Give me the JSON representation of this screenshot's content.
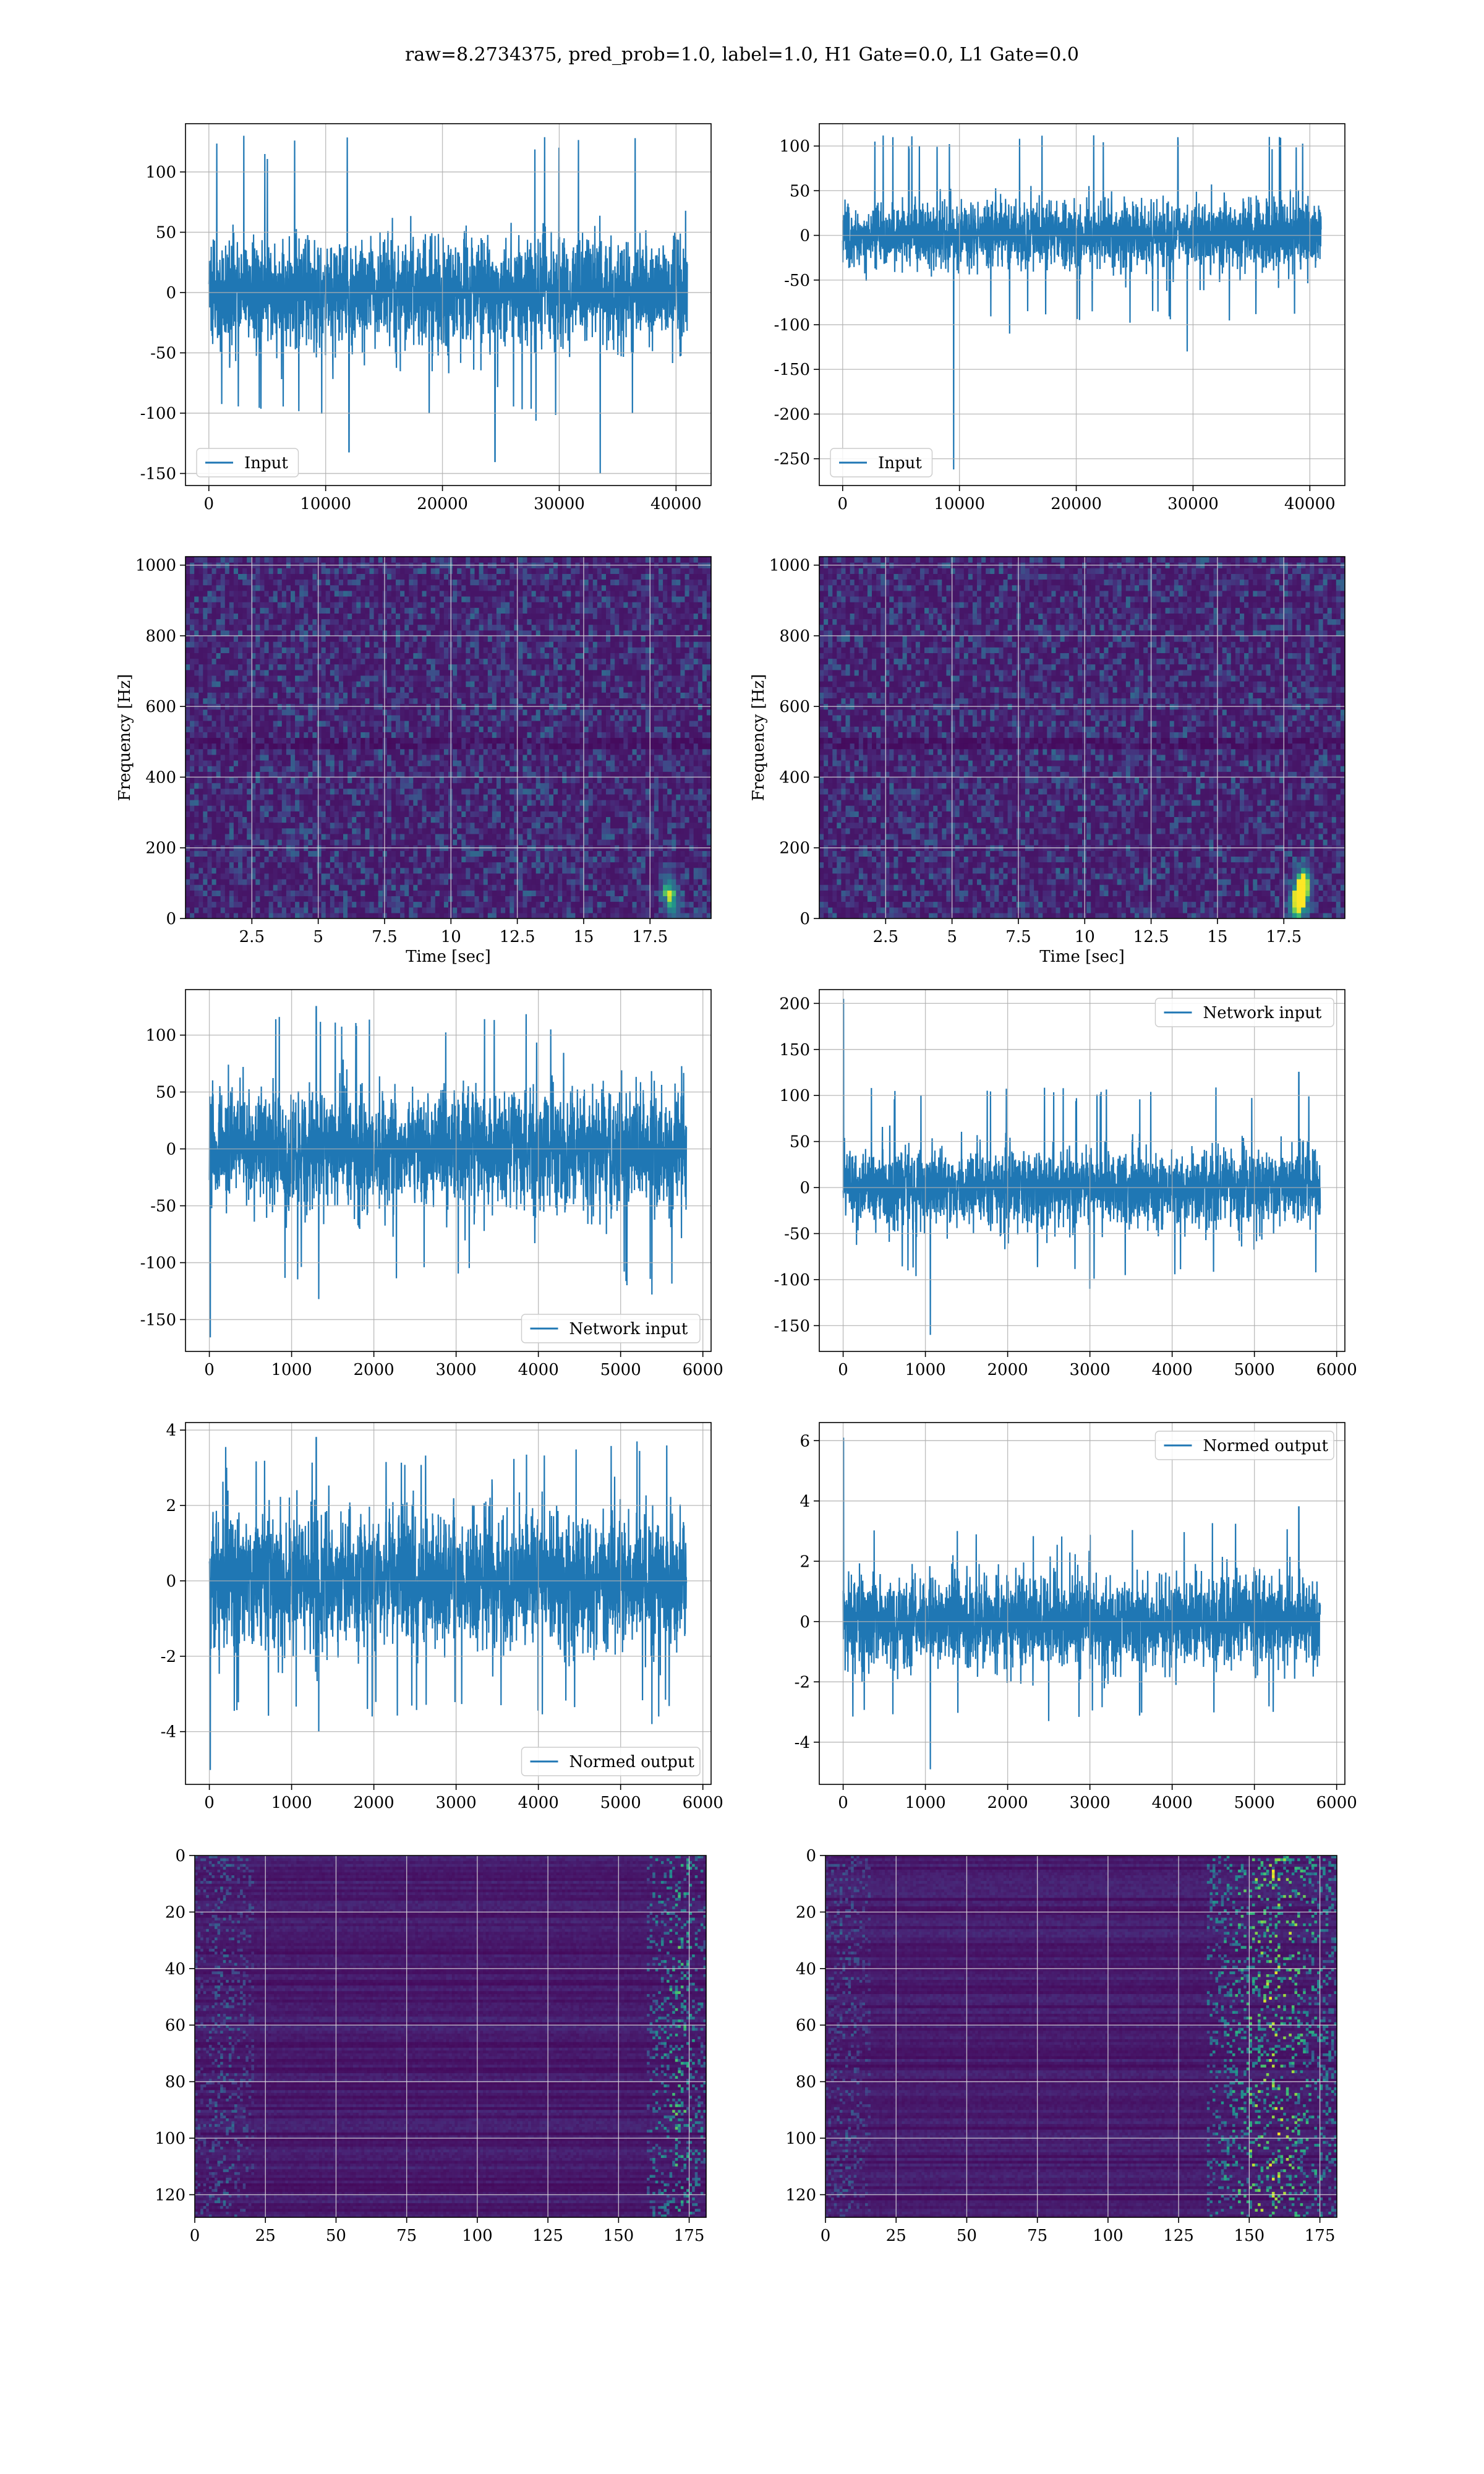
{
  "figure": {
    "suptitle": "raw=8.2734375, pred_prob=1.0, label=1.0, H1 Gate=0.0, L1 Gate=0.0",
    "background": "#ffffff",
    "line_color": "#1f77b4",
    "grid_color": "#b0b0b0"
  },
  "chart_data": [
    {
      "id": "h1-input",
      "type": "line",
      "kind": "signal",
      "xlim": [
        -2000,
        43000
      ],
      "ylim": [
        -160,
        140
      ],
      "xticks": [
        0,
        10000,
        20000,
        30000,
        40000
      ],
      "yticks": [
        -150,
        -100,
        -50,
        0,
        50,
        100
      ],
      "xlabel": "",
      "ylabel": "",
      "grid": true,
      "legend": {
        "labels": [
          "Input"
        ],
        "loc": "lower left"
      },
      "series": [
        {
          "name": "Input",
          "n": 40960,
          "x_end": 40960,
          "amplitude_std": 22,
          "envelope_min": -108,
          "envelope_max": 130,
          "spikes": [
            [
              3000,
              130
            ],
            [
              12000,
              -132
            ],
            [
              24500,
              -140
            ],
            [
              33500,
              -150
            ],
            [
              36500,
              128
            ]
          ]
        }
      ]
    },
    {
      "id": "l1-input",
      "type": "line",
      "kind": "signal",
      "xlim": [
        -2000,
        43000
      ],
      "ylim": [
        -280,
        125
      ],
      "xticks": [
        0,
        10000,
        20000,
        30000,
        40000
      ],
      "yticks": [
        -250,
        -200,
        -150,
        -100,
        -50,
        0,
        50,
        100
      ],
      "xlabel": "",
      "ylabel": "",
      "grid": true,
      "legend": {
        "labels": [
          "Input"
        ],
        "loc": "lower left"
      },
      "series": [
        {
          "name": "Input",
          "n": 40960,
          "x_end": 40960,
          "amplitude_std": 18,
          "envelope_min": -98,
          "envelope_max": 112,
          "spikes": [
            [
              9500,
              -262
            ],
            [
              4300,
              110
            ],
            [
              21500,
              112
            ],
            [
              29500,
              -130
            ],
            [
              14300,
              -110
            ]
          ]
        }
      ]
    },
    {
      "id": "h1-spectrogram",
      "type": "heatmap",
      "kind": "spectrogram",
      "xlim": [
        0,
        19.8
      ],
      "ylim": [
        0,
        1024
      ],
      "xticks": [
        2.5,
        5.0,
        7.5,
        10.0,
        12.5,
        15.0,
        17.5
      ],
      "yticks": [
        0,
        200,
        400,
        600,
        800,
        1000
      ],
      "xlabel": "Time [sec]",
      "ylabel": "Frequency [Hz]",
      "grid": true,
      "colormap": "viridis",
      "bright_spots": [
        [
          18.2,
          80,
          0.55
        ],
        [
          18.4,
          30,
          0.4
        ]
      ]
    },
    {
      "id": "l1-spectrogram",
      "type": "heatmap",
      "kind": "spectrogram",
      "xlim": [
        0,
        19.8
      ],
      "ylim": [
        0,
        1024
      ],
      "xticks": [
        2.5,
        5.0,
        7.5,
        10.0,
        12.5,
        15.0,
        17.5
      ],
      "yticks": [
        0,
        200,
        400,
        600,
        800,
        1000
      ],
      "xlabel": "Time [sec]",
      "ylabel": "Frequency [Hz]",
      "grid": true,
      "colormap": "viridis",
      "bright_spots": [
        [
          18.1,
          60,
          0.85
        ],
        [
          18.3,
          100,
          0.7
        ],
        [
          17.9,
          30,
          0.5
        ]
      ]
    },
    {
      "id": "h1-network-input",
      "type": "line",
      "kind": "signal",
      "xlim": [
        -290,
        6100
      ],
      "ylim": [
        -178,
        140
      ],
      "xticks": [
        0,
        1000,
        2000,
        3000,
        4000,
        5000,
        6000
      ],
      "yticks": [
        -150,
        -100,
        -50,
        0,
        50,
        100
      ],
      "xlabel": "",
      "ylabel": "",
      "grid": true,
      "legend": {
        "labels": [
          "Network input"
        ],
        "loc": "lower right"
      },
      "series": [
        {
          "name": "Network input",
          "n": 5800,
          "x_end": 5800,
          "amplitude_std": 25,
          "envelope_min": -120,
          "envelope_max": 120,
          "spikes": [
            [
              10,
              -165
            ],
            [
              1300,
              125
            ],
            [
              1330,
              -132
            ],
            [
              5380,
              -128
            ],
            [
              4150,
              105
            ]
          ]
        }
      ]
    },
    {
      "id": "l1-network-input",
      "type": "line",
      "kind": "signal",
      "xlim": [
        -290,
        6100
      ],
      "ylim": [
        -178,
        215
      ],
      "xticks": [
        0,
        1000,
        2000,
        3000,
        4000,
        5000,
        6000
      ],
      "yticks": [
        -150,
        -100,
        -50,
        0,
        50,
        100,
        150,
        200
      ],
      "xlabel": "",
      "ylabel": "",
      "grid": true,
      "legend": {
        "labels": [
          "Network input"
        ],
        "loc": "upper right"
      },
      "series": [
        {
          "name": "Network input",
          "n": 5800,
          "x_end": 5800,
          "amplitude_std": 20,
          "envelope_min": -100,
          "envelope_max": 110,
          "spikes": [
            [
              5,
              205
            ],
            [
              1060,
              -160
            ],
            [
              5540,
              125
            ],
            [
              3000,
              -110
            ]
          ]
        }
      ]
    },
    {
      "id": "h1-normed-output",
      "type": "line",
      "kind": "signal",
      "xlim": [
        -290,
        6100
      ],
      "ylim": [
        -5.4,
        4.2
      ],
      "xticks": [
        0,
        1000,
        2000,
        3000,
        4000,
        5000,
        6000
      ],
      "yticks": [
        -4,
        -2,
        0,
        2,
        4
      ],
      "xlabel": "",
      "ylabel": "",
      "grid": true,
      "legend": {
        "labels": [
          "Normed output"
        ],
        "loc": "lower right"
      },
      "series": [
        {
          "name": "Normed output",
          "n": 5800,
          "x_end": 5800,
          "amplitude_std": 0.85,
          "envelope_min": -3.6,
          "envelope_max": 3.6,
          "spikes": [
            [
              10,
              -5.0
            ],
            [
              1300,
              3.8
            ],
            [
              1330,
              -4.0
            ],
            [
              5380,
              -3.8
            ],
            [
              5200,
              3.7
            ]
          ]
        }
      ]
    },
    {
      "id": "l1-normed-output",
      "type": "line",
      "kind": "signal",
      "xlim": [
        -290,
        6100
      ],
      "ylim": [
        -5.4,
        6.6
      ],
      "xticks": [
        0,
        1000,
        2000,
        3000,
        4000,
        5000,
        6000
      ],
      "yticks": [
        -4,
        -2,
        0,
        2,
        4,
        6
      ],
      "xlabel": "",
      "ylabel": "",
      "grid": true,
      "legend": {
        "labels": [
          "Normed output"
        ],
        "loc": "upper right"
      },
      "series": [
        {
          "name": "Normed output",
          "n": 5800,
          "x_end": 5800,
          "amplitude_std": 0.75,
          "envelope_min": -3.3,
          "envelope_max": 3.3,
          "spikes": [
            [
              5,
              6.1
            ],
            [
              1060,
              -4.9
            ],
            [
              5540,
              3.8
            ],
            [
              2500,
              -3.3
            ]
          ]
        }
      ]
    },
    {
      "id": "h1-feature-map",
      "type": "heatmap",
      "kind": "featuremap",
      "xlim": [
        0,
        181
      ],
      "ylim": [
        128,
        0
      ],
      "rows": 128,
      "cols": 181,
      "xticks": [
        0,
        25,
        50,
        75,
        100,
        125,
        150,
        175
      ],
      "yticks": [
        0,
        20,
        40,
        60,
        80,
        100,
        120
      ],
      "xlabel": "",
      "ylabel": "",
      "grid": true,
      "colormap": "viridis",
      "activity_columns": [
        [
          0,
          20,
          0.35
        ],
        [
          160,
          181,
          0.75
        ]
      ]
    },
    {
      "id": "l1-feature-map",
      "type": "heatmap",
      "kind": "featuremap",
      "xlim": [
        0,
        181
      ],
      "ylim": [
        128,
        0
      ],
      "rows": 128,
      "cols": 181,
      "xticks": [
        0,
        25,
        50,
        75,
        100,
        125,
        150,
        175
      ],
      "yticks": [
        0,
        20,
        40,
        60,
        80,
        100,
        120
      ],
      "xlabel": "",
      "ylabel": "",
      "grid": true,
      "colormap": "viridis",
      "activity_columns": [
        [
          0,
          15,
          0.3
        ],
        [
          135,
          181,
          0.9
        ]
      ]
    }
  ]
}
